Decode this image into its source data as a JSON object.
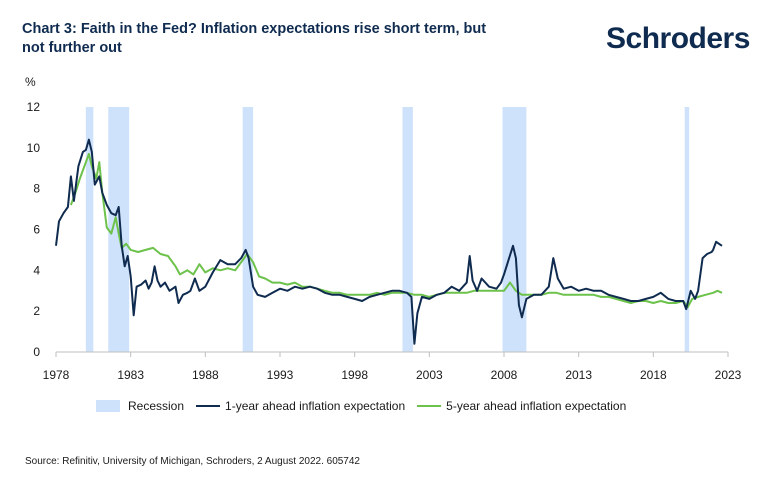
{
  "header": {
    "title": "Chart 3: Faith in the Fed? Inflation expectations rise short term, but not further out",
    "logo_text": "Schroders"
  },
  "footer": {
    "source": "Source: Refinitiv, University of Michigan, Schroders, 2 August 2022. 605742"
  },
  "chart_data": {
    "type": "line",
    "title": "Chart 3: Faith in the Fed? Inflation expectations rise short term, but not further out",
    "ylabel": "%",
    "xlabel": "",
    "xlim": [
      1978,
      2023
    ],
    "ylim": [
      0,
      12
    ],
    "x_ticks": [
      "1978",
      "1983",
      "1988",
      "1993",
      "1998",
      "2003",
      "2008",
      "2013",
      "2018",
      "2023"
    ],
    "y_ticks": [
      "0",
      "2",
      "4",
      "6",
      "8",
      "10",
      "12"
    ],
    "grid": false,
    "legend_position": "bottom",
    "recession_label": "Recession",
    "recessions": [
      [
        1980.0,
        1980.5
      ],
      [
        1981.5,
        1982.9
      ],
      [
        1990.5,
        1991.2
      ],
      [
        2001.2,
        2001.9
      ],
      [
        2007.9,
        2009.5
      ],
      [
        2020.1,
        2020.4
      ]
    ],
    "series": [
      {
        "name": "1-year ahead inflation expectation",
        "color": "#0f2b4f",
        "points": [
          [
            1978.0,
            5.2
          ],
          [
            1978.2,
            6.4
          ],
          [
            1978.5,
            6.8
          ],
          [
            1978.8,
            7.1
          ],
          [
            1979.0,
            8.6
          ],
          [
            1979.2,
            7.4
          ],
          [
            1979.5,
            9.1
          ],
          [
            1979.8,
            9.8
          ],
          [
            1980.0,
            9.9
          ],
          [
            1980.2,
            10.4
          ],
          [
            1980.4,
            9.8
          ],
          [
            1980.6,
            8.2
          ],
          [
            1980.9,
            8.6
          ],
          [
            1981.1,
            7.8
          ],
          [
            1981.4,
            7.2
          ],
          [
            1981.7,
            6.8
          ],
          [
            1982.0,
            6.7
          ],
          [
            1982.2,
            7.1
          ],
          [
            1982.4,
            5.2
          ],
          [
            1982.6,
            4.2
          ],
          [
            1982.8,
            4.7
          ],
          [
            1983.0,
            3.7
          ],
          [
            1983.2,
            1.8
          ],
          [
            1983.4,
            3.2
          ],
          [
            1983.7,
            3.3
          ],
          [
            1984.0,
            3.5
          ],
          [
            1984.2,
            3.1
          ],
          [
            1984.4,
            3.4
          ],
          [
            1984.6,
            4.2
          ],
          [
            1984.8,
            3.5
          ],
          [
            1985.0,
            3.2
          ],
          [
            1985.3,
            3.4
          ],
          [
            1985.6,
            3.0
          ],
          [
            1986.0,
            3.2
          ],
          [
            1986.2,
            2.4
          ],
          [
            1986.5,
            2.8
          ],
          [
            1986.8,
            2.9
          ],
          [
            1987.0,
            3.0
          ],
          [
            1987.3,
            3.6
          ],
          [
            1987.6,
            3.0
          ],
          [
            1988.0,
            3.2
          ],
          [
            1988.5,
            3.9
          ],
          [
            1989.0,
            4.5
          ],
          [
            1989.5,
            4.3
          ],
          [
            1990.0,
            4.3
          ],
          [
            1990.4,
            4.6
          ],
          [
            1990.7,
            5.0
          ],
          [
            1990.9,
            4.6
          ],
          [
            1991.2,
            3.2
          ],
          [
            1991.5,
            2.8
          ],
          [
            1992.0,
            2.7
          ],
          [
            1992.5,
            2.9
          ],
          [
            1993.0,
            3.1
          ],
          [
            1993.5,
            3.0
          ],
          [
            1994.0,
            3.2
          ],
          [
            1994.5,
            3.1
          ],
          [
            1995.0,
            3.2
          ],
          [
            1995.5,
            3.1
          ],
          [
            1996.0,
            2.9
          ],
          [
            1996.5,
            2.8
          ],
          [
            1997.0,
            2.8
          ],
          [
            1997.5,
            2.7
          ],
          [
            1998.0,
            2.6
          ],
          [
            1998.5,
            2.5
          ],
          [
            1999.0,
            2.7
          ],
          [
            1999.5,
            2.8
          ],
          [
            2000.0,
            2.9
          ],
          [
            2000.5,
            3.0
          ],
          [
            2001.0,
            3.0
          ],
          [
            2001.5,
            2.9
          ],
          [
            2001.8,
            2.7
          ],
          [
            2002.0,
            0.4
          ],
          [
            2002.2,
            1.9
          ],
          [
            2002.5,
            2.7
          ],
          [
            2003.0,
            2.6
          ],
          [
            2003.5,
            2.8
          ],
          [
            2004.0,
            2.9
          ],
          [
            2004.5,
            3.2
          ],
          [
            2005.0,
            3.0
          ],
          [
            2005.5,
            3.4
          ],
          [
            2005.7,
            4.7
          ],
          [
            2005.9,
            3.5
          ],
          [
            2006.2,
            3.0
          ],
          [
            2006.5,
            3.6
          ],
          [
            2007.0,
            3.2
          ],
          [
            2007.5,
            3.1
          ],
          [
            2007.8,
            3.4
          ],
          [
            2008.0,
            3.8
          ],
          [
            2008.3,
            4.5
          ],
          [
            2008.6,
            5.2
          ],
          [
            2008.8,
            4.6
          ],
          [
            2009.0,
            2.3
          ],
          [
            2009.2,
            1.7
          ],
          [
            2009.5,
            2.6
          ],
          [
            2010.0,
            2.8
          ],
          [
            2010.5,
            2.8
          ],
          [
            2011.0,
            3.2
          ],
          [
            2011.3,
            4.6
          ],
          [
            2011.6,
            3.6
          ],
          [
            2012.0,
            3.1
          ],
          [
            2012.5,
            3.2
          ],
          [
            2013.0,
            3.0
          ],
          [
            2013.5,
            3.1
          ],
          [
            2014.0,
            3.0
          ],
          [
            2014.5,
            3.0
          ],
          [
            2015.0,
            2.8
          ],
          [
            2015.5,
            2.7
          ],
          [
            2016.0,
            2.6
          ],
          [
            2016.5,
            2.5
          ],
          [
            2017.0,
            2.5
          ],
          [
            2017.5,
            2.6
          ],
          [
            2018.0,
            2.7
          ],
          [
            2018.5,
            2.9
          ],
          [
            2019.0,
            2.6
          ],
          [
            2019.5,
            2.5
          ],
          [
            2020.0,
            2.5
          ],
          [
            2020.2,
            2.1
          ],
          [
            2020.5,
            3.0
          ],
          [
            2020.8,
            2.6
          ],
          [
            2021.0,
            3.0
          ],
          [
            2021.3,
            4.6
          ],
          [
            2021.6,
            4.8
          ],
          [
            2021.9,
            4.9
          ],
          [
            2022.0,
            5.0
          ],
          [
            2022.2,
            5.4
          ],
          [
            2022.4,
            5.3
          ],
          [
            2022.6,
            5.2
          ]
        ]
      },
      {
        "name": "5-year ahead inflation expectation",
        "color": "#6cc24a",
        "points": [
          [
            1979.0,
            7.2
          ],
          [
            1979.3,
            7.8
          ],
          [
            1979.6,
            8.5
          ],
          [
            1980.0,
            9.3
          ],
          [
            1980.2,
            9.7
          ],
          [
            1980.4,
            9.1
          ],
          [
            1980.7,
            8.5
          ],
          [
            1980.9,
            9.3
          ],
          [
            1981.1,
            7.8
          ],
          [
            1981.4,
            6.1
          ],
          [
            1981.7,
            5.8
          ],
          [
            1982.0,
            6.6
          ],
          [
            1982.2,
            5.8
          ],
          [
            1982.4,
            5.1
          ],
          [
            1982.7,
            5.3
          ],
          [
            1983.0,
            5.0
          ],
          [
            1983.5,
            4.9
          ],
          [
            1984.0,
            5.0
          ],
          [
            1984.5,
            5.1
          ],
          [
            1985.0,
            4.8
          ],
          [
            1985.5,
            4.7
          ],
          [
            1986.0,
            4.2
          ],
          [
            1986.3,
            3.8
          ],
          [
            1986.8,
            4.0
          ],
          [
            1987.2,
            3.8
          ],
          [
            1987.6,
            4.3
          ],
          [
            1988.0,
            3.9
          ],
          [
            1988.5,
            4.1
          ],
          [
            1989.0,
            4.0
          ],
          [
            1989.5,
            4.1
          ],
          [
            1990.0,
            4.0
          ],
          [
            1990.5,
            4.5
          ],
          [
            1990.8,
            4.8
          ],
          [
            1991.2,
            4.4
          ],
          [
            1991.6,
            3.7
          ],
          [
            1992.0,
            3.6
          ],
          [
            1992.5,
            3.4
          ],
          [
            1993.0,
            3.4
          ],
          [
            1993.5,
            3.3
          ],
          [
            1994.0,
            3.4
          ],
          [
            1994.5,
            3.2
          ],
          [
            1995.0,
            3.2
          ],
          [
            1995.5,
            3.1
          ],
          [
            1996.0,
            3.0
          ],
          [
            1996.5,
            2.9
          ],
          [
            1997.0,
            2.9
          ],
          [
            1997.5,
            2.8
          ],
          [
            1998.0,
            2.8
          ],
          [
            1998.5,
            2.8
          ],
          [
            1999.0,
            2.8
          ],
          [
            1999.5,
            2.9
          ],
          [
            2000.0,
            2.8
          ],
          [
            2000.5,
            2.9
          ],
          [
            2001.0,
            2.9
          ],
          [
            2001.5,
            2.9
          ],
          [
            2002.0,
            2.8
          ],
          [
            2002.5,
            2.8
          ],
          [
            2003.0,
            2.7
          ],
          [
            2003.5,
            2.8
          ],
          [
            2004.0,
            2.9
          ],
          [
            2004.5,
            2.9
          ],
          [
            2005.0,
            2.9
          ],
          [
            2005.5,
            2.9
          ],
          [
            2006.0,
            3.0
          ],
          [
            2006.5,
            3.0
          ],
          [
            2007.0,
            3.0
          ],
          [
            2007.5,
            3.0
          ],
          [
            2008.0,
            3.0
          ],
          [
            2008.4,
            3.4
          ],
          [
            2008.8,
            3.0
          ],
          [
            2009.2,
            2.8
          ],
          [
            2009.6,
            2.8
          ],
          [
            2010.0,
            2.8
          ],
          [
            2010.5,
            2.8
          ],
          [
            2011.0,
            2.9
          ],
          [
            2011.5,
            2.9
          ],
          [
            2012.0,
            2.8
          ],
          [
            2012.5,
            2.8
          ],
          [
            2013.0,
            2.8
          ],
          [
            2013.5,
            2.8
          ],
          [
            2014.0,
            2.8
          ],
          [
            2014.5,
            2.7
          ],
          [
            2015.0,
            2.7
          ],
          [
            2015.5,
            2.6
          ],
          [
            2016.0,
            2.5
          ],
          [
            2016.5,
            2.4
          ],
          [
            2017.0,
            2.5
          ],
          [
            2017.5,
            2.5
          ],
          [
            2018.0,
            2.4
          ],
          [
            2018.5,
            2.5
          ],
          [
            2019.0,
            2.4
          ],
          [
            2019.5,
            2.4
          ],
          [
            2020.0,
            2.5
          ],
          [
            2020.3,
            2.2
          ],
          [
            2020.6,
            2.6
          ],
          [
            2021.0,
            2.7
          ],
          [
            2021.5,
            2.8
          ],
          [
            2022.0,
            2.9
          ],
          [
            2022.3,
            3.0
          ],
          [
            2022.6,
            2.9
          ]
        ]
      }
    ]
  }
}
